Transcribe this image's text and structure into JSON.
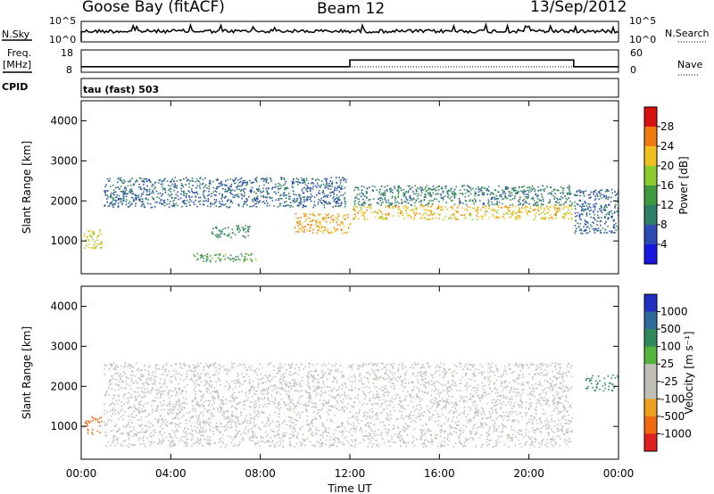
{
  "header": {
    "station": "Goose Bay (fitACF)",
    "beam": "Beam 12",
    "date": "13/Sep/2012"
  },
  "strips": {
    "nsky_label": "N.Sky",
    "nsky_ticks": [
      "10^5",
      "10^0"
    ],
    "nsearch_ticks": [
      "10^5",
      "10^0"
    ],
    "nsearch_label": "N.Search",
    "freq_label": "Freq.",
    "freq_unit": "[MHz]",
    "freq_ticks": [
      "18",
      "8"
    ],
    "nave_ticks": [
      "60",
      "0"
    ],
    "nave_label": "Nave",
    "cpid_label": "CPID",
    "cpid_value": "tau (fast) 503"
  },
  "axes": {
    "ylabel": "Slant Range [km]",
    "xlabel": "Time UT",
    "x_tick_labels": [
      "00:00",
      "04:00",
      "08:00",
      "12:00",
      "16:00",
      "20:00",
      "00:00"
    ],
    "y_tick_labels": [
      "1000",
      "2000",
      "3000",
      "4000"
    ]
  },
  "colorbars": {
    "power": {
      "label": "Power [dB]",
      "tick_labels": [
        "4",
        "8",
        "12",
        "16",
        "20",
        "24",
        "28"
      ],
      "colors": [
        "#1616e0",
        "#2c4bb4",
        "#2e7e6a",
        "#3f9a3f",
        "#8ccc2a",
        "#f0c020",
        "#f07a10",
        "#d81010"
      ]
    },
    "velocity": {
      "label": "Velocity [m s⁻¹]",
      "tick_labels": [
        "1000",
        "500",
        "100",
        "25",
        "-25",
        "-100",
        "-500",
        "-1000"
      ],
      "colors": [
        "#2030c0",
        "#2e6a9a",
        "#2e8a5a",
        "#55b43c",
        "#c0c0b8",
        "#c0c0b8",
        "#f0a020",
        "#f06a10",
        "#e02020"
      ]
    }
  },
  "chart_data": {
    "type": "heatmap",
    "x_range_hours": [
      0,
      24
    ],
    "y_range_km": [
      180,
      4500
    ],
    "grid": false,
    "freq_mhz": {
      "x_hours": [
        0,
        12,
        12,
        22,
        22,
        24
      ],
      "values": [
        10.5,
        10.5,
        13.5,
        13.5,
        10.5,
        10.5
      ]
    },
    "power_echo_regions_db": [
      {
        "t": [
          0.1,
          0.9
        ],
        "r": [
          800,
          1300
        ],
        "level": 20
      },
      {
        "t": [
          1.0,
          11.8
        ],
        "r": [
          1850,
          2600
        ],
        "level": 8
      },
      {
        "t": [
          5.0,
          7.8
        ],
        "r": [
          500,
          700
        ],
        "level": 14
      },
      {
        "t": [
          5.8,
          7.5
        ],
        "r": [
          1100,
          1400
        ],
        "level": 12
      },
      {
        "t": [
          9.5,
          12.0
        ],
        "r": [
          1200,
          1700
        ],
        "level": 24
      },
      {
        "t": [
          12.1,
          21.9
        ],
        "r": [
          1550,
          1900
        ],
        "level": 22
      },
      {
        "t": [
          12.1,
          21.9
        ],
        "r": [
          1900,
          2400
        ],
        "level": 10
      },
      {
        "t": [
          22.0,
          24.0
        ],
        "r": [
          1200,
          2300
        ],
        "level": 8
      }
    ],
    "velocity_summary_ms": [
      {
        "t": [
          0.1,
          0.9
        ],
        "r": [
          800,
          1300
        ],
        "velocity": -500
      },
      {
        "t": [
          1.0,
          21.9
        ],
        "r": [
          500,
          2600
        ],
        "velocity": 0
      },
      {
        "t": [
          22.5,
          24.0
        ],
        "r": [
          1900,
          2300
        ],
        "velocity": 100
      }
    ]
  }
}
